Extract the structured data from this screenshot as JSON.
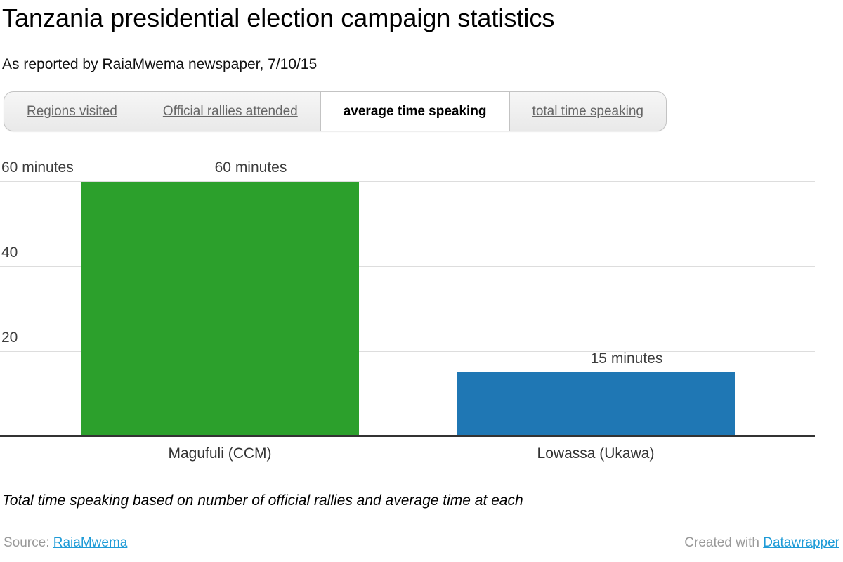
{
  "header": {
    "title": "Tanzania presidential election campaign statistics",
    "subtitle": "As reported by RaiaMwema newspaper, 7/10/15"
  },
  "tabs": [
    {
      "label": "Regions visited",
      "active": false
    },
    {
      "label": "Official rallies attended",
      "active": false
    },
    {
      "label": "average time speaking",
      "active": true
    },
    {
      "label": "total time speaking",
      "active": false
    }
  ],
  "chart_data": {
    "type": "bar",
    "categories": [
      "Magufuli (CCM)",
      "Lowassa (Ukawa)"
    ],
    "values": [
      60,
      15
    ],
    "value_labels": [
      "60 minutes",
      "15 minutes"
    ],
    "bar_colors": [
      "#2ca02c",
      "#1f77b4"
    ],
    "yticks": [
      {
        "value": 60,
        "label": "60 minutes"
      },
      {
        "value": 40,
        "label": "40"
      },
      {
        "value": 20,
        "label": "20"
      }
    ],
    "ylim": [
      0,
      60
    ],
    "ylabel": "minutes",
    "grid": true,
    "legend": "none"
  },
  "footnote": "Total time speaking based on number of official rallies and average time at each",
  "footer": {
    "source_label": "Source:",
    "source_link": "RaiaMwema",
    "credit_label": "Created with",
    "credit_link": "Datawrapper"
  },
  "colors": {
    "link": "#1e9bd7",
    "grid": "#dddddd",
    "baseline": "#333333",
    "muted_text": "#999999"
  }
}
